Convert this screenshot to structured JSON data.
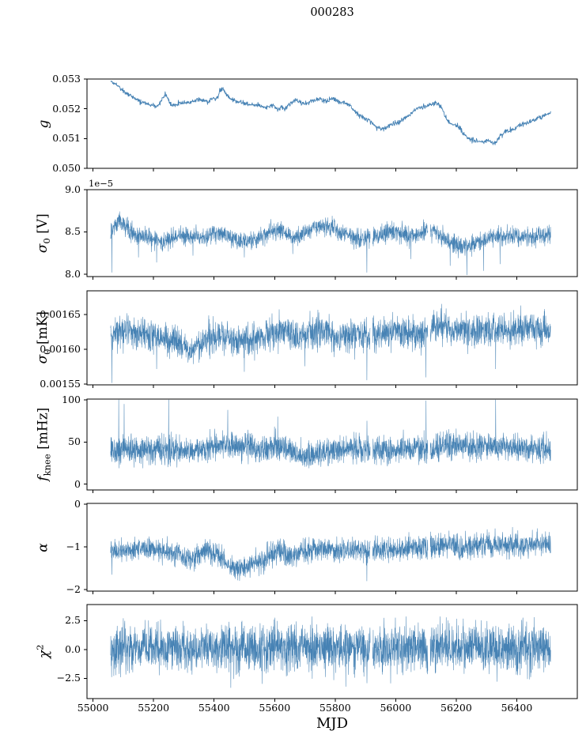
{
  "title": "000283",
  "accent_color": "#4682b4",
  "x_axis": {
    "label": "MJD",
    "lim": [
      54980,
      56600
    ],
    "ticks": [
      55000,
      55200,
      55400,
      55600,
      55800,
      56000,
      56200,
      56400
    ],
    "tick_labels": [
      "55000",
      "55200",
      "55400",
      "55600",
      "55800",
      "56000",
      "56200",
      "56400"
    ],
    "data_range": [
      55058,
      56512
    ],
    "gaps": [
      [
        55916,
        55924
      ],
      [
        56106,
        56114
      ]
    ]
  },
  "chart_data": [
    {
      "type": "line",
      "name": "g",
      "ylabel": [
        {
          "t": "g",
          "s": "it"
        }
      ],
      "ylim": [
        0.05,
        0.053
      ],
      "yticks": [
        0.05,
        0.051,
        0.052,
        0.053
      ],
      "ytick_labels": [
        "0.050",
        "0.051",
        "0.052",
        "0.053"
      ],
      "offset_text": "",
      "n_points": 1300,
      "seed": 17,
      "noise_sigma": 4e-05,
      "lw": 0.9,
      "clip": [
        0.05,
        0.053
      ],
      "use_gaps": false,
      "spikes": [],
      "trend_x": [
        55058,
        55070,
        55080,
        55090,
        55100,
        55112,
        55125,
        55140,
        55155,
        55170,
        55185,
        55200,
        55212,
        55225,
        55238,
        55248,
        55260,
        55275,
        55290,
        55305,
        55320,
        55335,
        55350,
        55365,
        55380,
        55395,
        55408,
        55420,
        55430,
        55440,
        55452,
        55465,
        55478,
        55492,
        55506,
        55520,
        55535,
        55550,
        55565,
        55580,
        55595,
        55610,
        55622,
        55635,
        55648,
        55660,
        55672,
        55685,
        55700,
        55715,
        55730,
        55745,
        55760,
        55775,
        55790,
        55805,
        55820,
        55835,
        55850,
        55865,
        55880,
        55895,
        55910,
        55925,
        55940,
        55955,
        55970,
        55985,
        56000,
        56015,
        56030,
        56045,
        56060,
        56075,
        56090,
        56105,
        56120,
        56135,
        56150,
        56165,
        56180,
        56195,
        56210,
        56225,
        56240,
        56255,
        56270,
        56285,
        56300,
        56315,
        56330,
        56345,
        56360,
        56375,
        56390,
        56405,
        56420,
        56435,
        56450,
        56465,
        56480,
        56495,
        56512
      ],
      "trend_y": [
        0.05295,
        0.05285,
        0.0528,
        0.0527,
        0.05262,
        0.05252,
        0.05245,
        0.05232,
        0.05222,
        0.0522,
        0.05212,
        0.0521,
        0.05205,
        0.05228,
        0.05248,
        0.0523,
        0.05212,
        0.05215,
        0.05222,
        0.0522,
        0.05222,
        0.05228,
        0.05232,
        0.05228,
        0.05222,
        0.05235,
        0.05232,
        0.05262,
        0.05268,
        0.05248,
        0.05238,
        0.05228,
        0.05222,
        0.05222,
        0.05215,
        0.05212,
        0.0521,
        0.05212,
        0.05205,
        0.05208,
        0.05212,
        0.05195,
        0.05205,
        0.052,
        0.05215,
        0.05222,
        0.05228,
        0.05222,
        0.05218,
        0.05222,
        0.05228,
        0.05235,
        0.0523,
        0.05228,
        0.05235,
        0.05228,
        0.05222,
        0.05218,
        0.05208,
        0.05192,
        0.05178,
        0.05168,
        0.0516,
        0.05148,
        0.05135,
        0.05132,
        0.05138,
        0.05148,
        0.05152,
        0.05158,
        0.05168,
        0.05178,
        0.05195,
        0.05205,
        0.05208,
        0.0521,
        0.05215,
        0.05218,
        0.05208,
        0.05172,
        0.05152,
        0.05145,
        0.05138,
        0.05115,
        0.05102,
        0.05095,
        0.05092,
        0.05088,
        0.05095,
        0.05088,
        0.05085,
        0.05108,
        0.05122,
        0.05128,
        0.05132,
        0.05142,
        0.05148,
        0.05152,
        0.05158,
        0.05165,
        0.05172,
        0.05182,
        0.05188
      ]
    },
    {
      "type": "line",
      "name": "sigma0-V",
      "ylabel": [
        {
          "t": "σ",
          "s": "it"
        },
        {
          "t": "0",
          "s": "sub"
        },
        {
          "t": " [V]",
          "s": "n"
        }
      ],
      "ylim": [
        7.97,
        9.0
      ],
      "yticks": [
        8.0,
        8.5,
        9.0
      ],
      "ytick_labels": [
        "8.0",
        "8.5",
        "9.0"
      ],
      "offset_text": "1e−5",
      "n_points": 2400,
      "seed": 29,
      "noise_sigma": 0.055,
      "lw": 0.55,
      "clip": [
        7.99,
        8.8
      ],
      "use_gaps": true,
      "spikes": [
        [
          55062,
          8.02
        ],
        [
          55088,
          8.74
        ],
        [
          55150,
          8.2
        ],
        [
          55210,
          8.14
        ],
        [
          55330,
          8.22
        ],
        [
          55500,
          8.2
        ],
        [
          55660,
          8.24
        ],
        [
          55905,
          8.02
        ],
        [
          56050,
          8.18
        ],
        [
          56180,
          8.1
        ],
        [
          56235,
          7.99
        ],
        [
          56290,
          8.04
        ],
        [
          56345,
          8.12
        ]
      ],
      "trend_x": [
        55058,
        55075,
        55090,
        55105,
        55125,
        55145,
        55165,
        55185,
        55205,
        55225,
        55245,
        55265,
        55285,
        55305,
        55325,
        55345,
        55365,
        55385,
        55405,
        55425,
        55445,
        55465,
        55485,
        55505,
        55525,
        55545,
        55565,
        55585,
        55605,
        55625,
        55645,
        55665,
        55685,
        55705,
        55725,
        55745,
        55765,
        55785,
        55805,
        55825,
        55845,
        55865,
        55885,
        55905,
        55925,
        55945,
        55965,
        55985,
        56005,
        56025,
        56045,
        56065,
        56085,
        56105,
        56125,
        56145,
        56165,
        56185,
        56205,
        56225,
        56245,
        56265,
        56285,
        56305,
        56325,
        56345,
        56365,
        56385,
        56405,
        56425,
        56445,
        56465,
        56485,
        56512
      ],
      "trend_y": [
        8.52,
        8.58,
        8.62,
        8.58,
        8.5,
        8.46,
        8.44,
        8.42,
        8.4,
        8.37,
        8.41,
        8.43,
        8.45,
        8.46,
        8.45,
        8.44,
        8.42,
        8.45,
        8.49,
        8.47,
        8.45,
        8.42,
        8.4,
        8.38,
        8.4,
        8.43,
        8.46,
        8.5,
        8.52,
        8.5,
        8.46,
        8.43,
        8.46,
        8.5,
        8.54,
        8.56,
        8.57,
        8.55,
        8.52,
        8.5,
        8.46,
        8.43,
        8.41,
        8.42,
        8.45,
        8.46,
        8.48,
        8.5,
        8.5,
        8.48,
        8.46,
        8.46,
        8.5,
        8.52,
        8.5,
        8.46,
        8.41,
        8.37,
        8.34,
        8.32,
        8.33,
        8.36,
        8.4,
        8.42,
        8.44,
        8.45,
        8.45,
        8.45,
        8.45,
        8.45,
        8.45,
        8.46,
        8.46,
        8.46
      ]
    },
    {
      "type": "line",
      "name": "sigma0-mK",
      "ylabel": [
        {
          "t": "σ",
          "s": "it"
        },
        {
          "t": "0",
          "s": "sub"
        },
        {
          "t": " [mK]",
          "s": "n"
        }
      ],
      "ylim": [
        0.001549,
        0.001684
      ],
      "yticks": [
        0.00155,
        0.0016,
        0.00165
      ],
      "ytick_labels": [
        "0.00155",
        "0.00160",
        "0.00165"
      ],
      "offset_text": "",
      "n_points": 2400,
      "seed": 41,
      "noise_sigma": 1.15e-05,
      "lw": 0.55,
      "clip": [
        0.001549,
        0.001668
      ],
      "use_gaps": true,
      "spikes": [
        [
          55062,
          0.001552
        ],
        [
          55210,
          0.001572
        ],
        [
          55500,
          0.001568
        ],
        [
          55700,
          0.001576
        ],
        [
          55905,
          0.001556
        ],
        [
          56100,
          0.00156
        ],
        [
          56152,
          0.001665
        ],
        [
          56330,
          0.001572
        ]
      ],
      "trend_x": [
        55058,
        55090,
        55120,
        55150,
        55180,
        55210,
        55240,
        55270,
        55300,
        55320,
        55340,
        55370,
        55400,
        55430,
        55460,
        55490,
        55520,
        55550,
        55580,
        55610,
        55640,
        55670,
        55700,
        55730,
        55760,
        55790,
        55820,
        55850,
        55880,
        55910,
        55940,
        55970,
        56000,
        56030,
        56060,
        56090,
        56120,
        56150,
        56170,
        56200,
        56230,
        56260,
        56290,
        56320,
        56350,
        56380,
        56410,
        56440,
        56470,
        56512
      ],
      "trend_y": [
        0.00162,
        0.001626,
        0.001625,
        0.001622,
        0.00162,
        0.001618,
        0.001615,
        0.001612,
        0.001605,
        0.001596,
        0.001604,
        0.001615,
        0.00162,
        0.00162,
        0.001615,
        0.001612,
        0.001614,
        0.001618,
        0.00162,
        0.001625,
        0.001622,
        0.001618,
        0.00162,
        0.001625,
        0.001626,
        0.001624,
        0.00162,
        0.00162,
        0.00162,
        0.00162,
        0.001622,
        0.001626,
        0.001624,
        0.001622,
        0.001622,
        0.001626,
        0.00163,
        0.001636,
        0.001632,
        0.001628,
        0.001628,
        0.00163,
        0.001628,
        0.001628,
        0.00163,
        0.001628,
        0.001628,
        0.00163,
        0.001628,
        0.001628
      ]
    },
    {
      "type": "line",
      "name": "fknee",
      "ylabel": [
        {
          "t": "f",
          "s": "it"
        },
        {
          "t": "knee",
          "s": "sub"
        },
        {
          "t": " [mHz]",
          "s": "n"
        }
      ],
      "ylim": [
        -7,
        101
      ],
      "yticks": [
        0,
        50,
        100
      ],
      "ytick_labels": [
        "0",
        "50",
        "100"
      ],
      "offset_text": "",
      "n_points": 2600,
      "seed": 53,
      "noise_sigma": 8,
      "lw": 0.55,
      "clip": [
        19,
        103
      ],
      "use_gaps": true,
      "spikes": [
        [
          55085,
          100
        ],
        [
          55103,
          95
        ],
        [
          55250,
          100
        ],
        [
          55445,
          88
        ],
        [
          55610,
          80
        ],
        [
          55905,
          75
        ],
        [
          56100,
          99
        ],
        [
          56330,
          100
        ]
      ],
      "trend_x": [
        55058,
        55100,
        55150,
        55200,
        55250,
        55300,
        55350,
        55400,
        55430,
        55460,
        55500,
        55550,
        55600,
        55630,
        55660,
        55690,
        55720,
        55750,
        55800,
        55850,
        55900,
        55950,
        56000,
        56050,
        56100,
        56150,
        56200,
        56250,
        56300,
        56350,
        56400,
        56450,
        56512
      ],
      "trend_y": [
        40,
        42,
        40,
        40,
        41,
        40,
        40,
        45,
        48,
        45,
        42,
        40,
        44,
        42,
        38,
        34,
        35,
        38,
        40,
        42,
        40,
        40,
        42,
        42,
        41,
        44,
        46,
        44,
        44,
        45,
        43,
        43,
        42
      ]
    },
    {
      "type": "line",
      "name": "alpha",
      "ylabel": [
        {
          "t": "α",
          "s": "it"
        }
      ],
      "ylim": [
        -2.04,
        0.02
      ],
      "yticks": [
        0,
        -1,
        -2
      ],
      "ytick_labels": [
        "0",
        "−1",
        "−2"
      ],
      "offset_text": "",
      "n_points": 2400,
      "seed": 65,
      "noise_sigma": 0.14,
      "lw": 0.55,
      "clip": [
        -2.0,
        -0.3
      ],
      "use_gaps": true,
      "spikes": [
        [
          55062,
          -1.65
        ],
        [
          55905,
          -1.8
        ],
        [
          56108,
          -0.45
        ]
      ],
      "trend_x": [
        55058,
        55100,
        55150,
        55200,
        55250,
        55290,
        55320,
        55350,
        55380,
        55410,
        55440,
        55460,
        55480,
        55500,
        55520,
        55545,
        55570,
        55595,
        55615,
        55635,
        55655,
        55675,
        55700,
        55750,
        55800,
        55850,
        55900,
        55950,
        56000,
        56050,
        56100,
        56150,
        56200,
        56250,
        56300,
        56350,
        56400,
        56450,
        56512
      ],
      "trend_y": [
        -1.1,
        -1.05,
        -1.05,
        -1.1,
        -1.12,
        -1.2,
        -1.28,
        -1.22,
        -1.12,
        -1.18,
        -1.38,
        -1.5,
        -1.52,
        -1.48,
        -1.42,
        -1.35,
        -1.28,
        -1.18,
        -1.1,
        -1.18,
        -1.22,
        -1.12,
        -1.06,
        -1.05,
        -1.06,
        -1.1,
        -1.08,
        -1.06,
        -1.04,
        -1.02,
        -1.0,
        -1.0,
        -1.0,
        -0.98,
        -0.96,
        -0.96,
        -0.95,
        -0.94,
        -0.92
      ]
    },
    {
      "type": "line",
      "name": "chi2",
      "ylabel": [
        {
          "t": "χ",
          "s": "it"
        },
        {
          "t": "2",
          "s": "sup"
        }
      ],
      "ylim": [
        -4.25,
        3.9
      ],
      "yticks": [
        2.5,
        0.0,
        -2.5
      ],
      "ytick_labels": [
        "2.5",
        "0.0",
        "−2.5"
      ],
      "offset_text": "",
      "n_points": 2600,
      "seed": 77,
      "noise_sigma": 1.0,
      "lw": 0.55,
      "clip": [
        -3.35,
        2.85
      ],
      "use_gaps": true,
      "spikes": [
        [
          55100,
          2.7
        ],
        [
          55455,
          -3.3
        ],
        [
          55835,
          -3.2
        ],
        [
          55905,
          -2.9
        ],
        [
          56420,
          2.75
        ]
      ],
      "trend_x": [
        55058,
        56512
      ],
      "trend_y": [
        0.1,
        0.1
      ]
    }
  ]
}
